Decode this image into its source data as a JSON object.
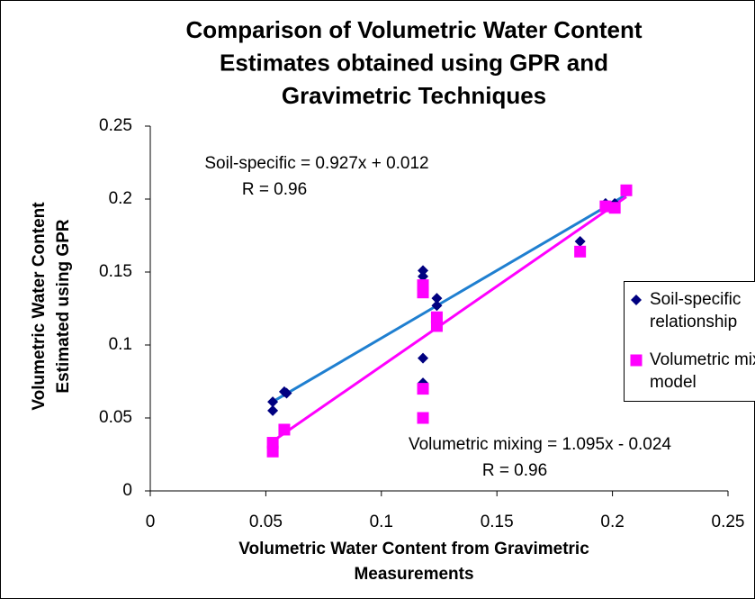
{
  "chart_data": {
    "type": "scatter",
    "title": [
      "Comparison of Volumetric Water Content",
      "Estimates obtained using GPR and",
      "Gravimetric Techniques"
    ],
    "xlabel": [
      "Volumetric Water Content from Gravimetric",
      "Measurements"
    ],
    "ylabel": [
      "Volumetric Water Content",
      "Estimated using GPR"
    ],
    "xlim": [
      0,
      0.25
    ],
    "ylim": [
      0,
      0.25
    ],
    "xticks": [
      0,
      0.05,
      0.1,
      0.15,
      0.2,
      0.25
    ],
    "yticks": [
      0,
      0.05,
      0.1,
      0.15,
      0.2,
      0.25
    ],
    "grid": false,
    "legend": "right",
    "series": [
      {
        "name": "Soil-specific relationship",
        "color": "#000080",
        "marker": "diamond",
        "x": [
          0.053,
          0.053,
          0.058,
          0.059,
          0.118,
          0.118,
          0.118,
          0.118,
          0.124,
          0.124,
          0.186,
          0.197,
          0.201,
          0.206
        ],
        "values": [
          0.061,
          0.055,
          0.068,
          0.067,
          0.151,
          0.147,
          0.091,
          0.074,
          0.132,
          0.127,
          0.171,
          0.197,
          0.197,
          0.206
        ],
        "trendline": {
          "slope": 0.927,
          "intercept": 0.012,
          "color": "#1f7fd0"
        }
      },
      {
        "name": "Volumetric mixing model",
        "color": "#ff00ff",
        "marker": "square",
        "x": [
          0.053,
          0.053,
          0.058,
          0.118,
          0.118,
          0.118,
          0.118,
          0.124,
          0.124,
          0.186,
          0.197,
          0.201,
          0.206
        ],
        "values": [
          0.033,
          0.027,
          0.042,
          0.141,
          0.136,
          0.07,
          0.05,
          0.119,
          0.113,
          0.164,
          0.195,
          0.194,
          0.206
        ],
        "trendline": {
          "slope": 1.095,
          "intercept": -0.024,
          "color": "#ff00ff"
        }
      }
    ],
    "annotations": [
      "Soil-specific = 0.927x + 0.012",
      "R = 0.96",
      "Volumetric mixing = 1.095x - 0.024",
      "R = 0.96"
    ]
  }
}
